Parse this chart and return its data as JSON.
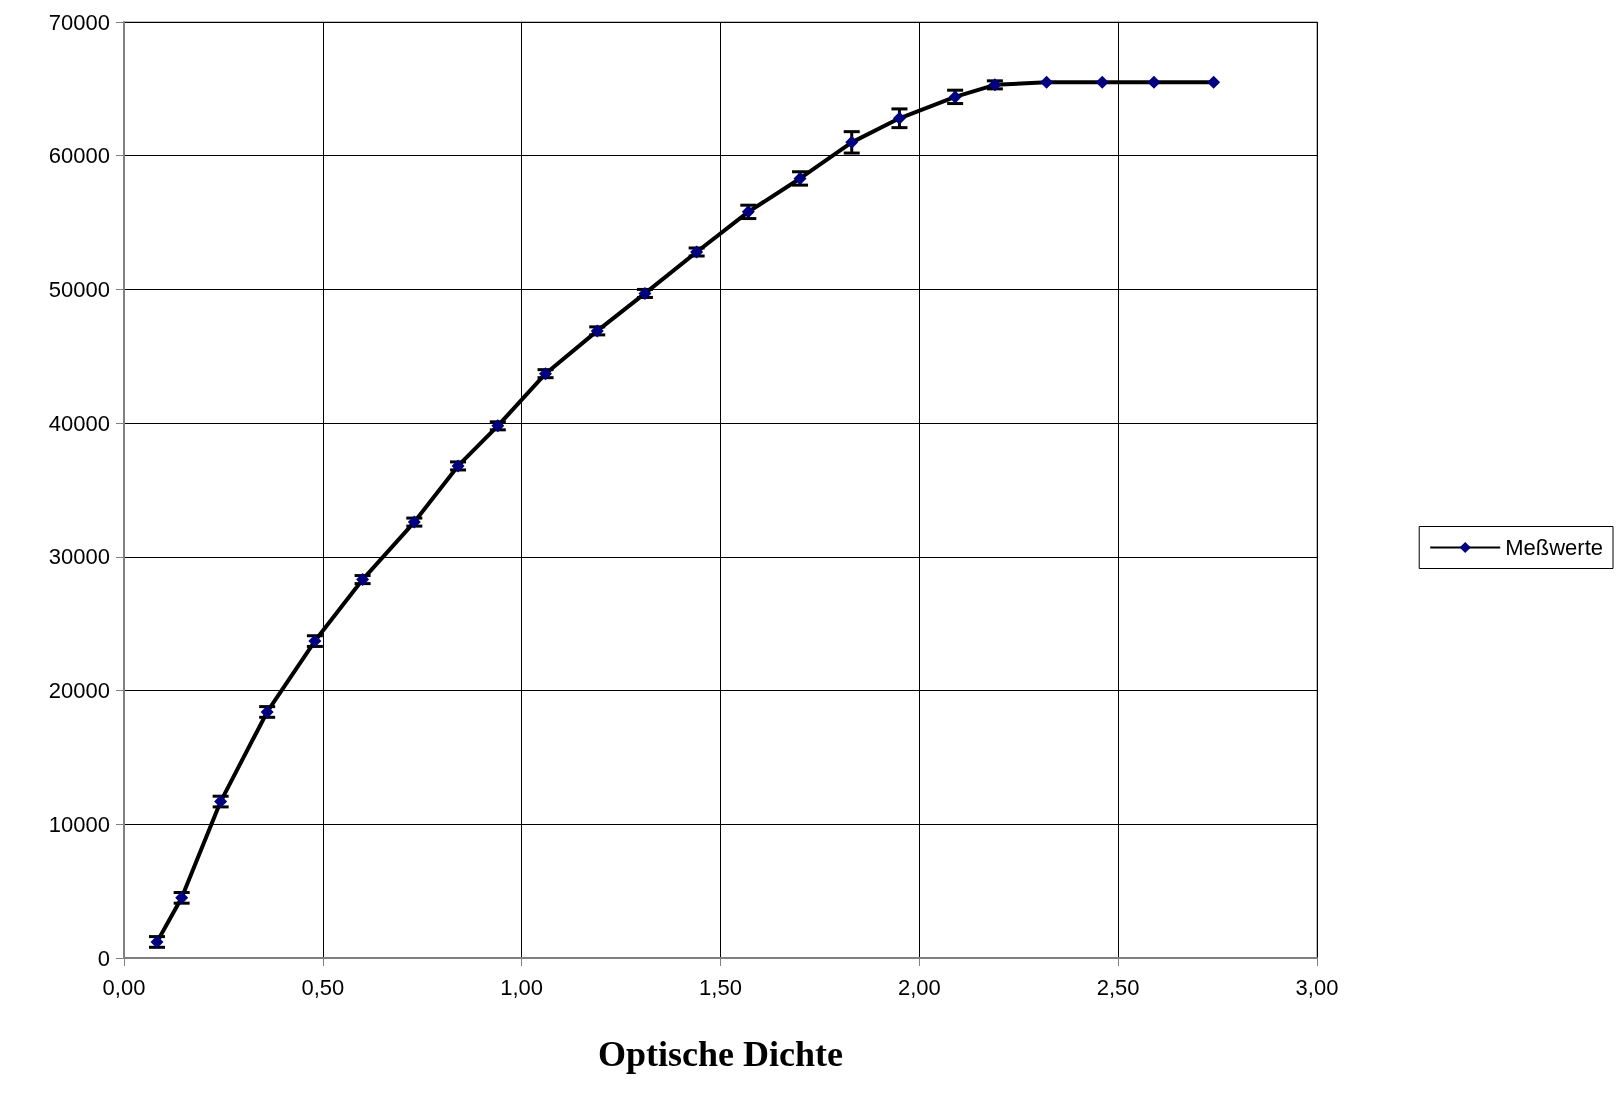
{
  "chart_data": {
    "type": "line",
    "xlabel": "Optische Dichte",
    "x": [
      0.083,
      0.145,
      0.243,
      0.36,
      0.48,
      0.6,
      0.73,
      0.84,
      0.94,
      1.06,
      1.19,
      1.31,
      1.44,
      1.57,
      1.7,
      1.83,
      1.95,
      2.09,
      2.19,
      2.32,
      2.46,
      2.59,
      2.74
    ],
    "series": [
      {
        "name": "Meßwerte",
        "color": "#000080",
        "values": [
          1200,
          4500,
          11700,
          18400,
          23700,
          28300,
          32600,
          36800,
          39800,
          43700,
          46900,
          49700,
          52800,
          55800,
          58300,
          61000,
          62800,
          64400,
          65300,
          65500,
          65500,
          65500,
          65500
        ],
        "errors": [
          400,
          400,
          400,
          400,
          400,
          300,
          300,
          300,
          300,
          300,
          300,
          300,
          300,
          500,
          500,
          800,
          700,
          500,
          300,
          null,
          null,
          null,
          null
        ]
      }
    ],
    "xlim": [
      0,
      3
    ],
    "xticks": [
      {
        "value": 0,
        "label": "0,00"
      },
      {
        "value": 0.5,
        "label": "0,50"
      },
      {
        "value": 1,
        "label": "1,00"
      },
      {
        "value": 1.5,
        "label": "1,50"
      },
      {
        "value": 2,
        "label": "2,00"
      },
      {
        "value": 2.5,
        "label": "2,50"
      },
      {
        "value": 3,
        "label": "3,00"
      }
    ],
    "ylim": [
      0,
      70000
    ],
    "yticks": [
      0,
      10000,
      20000,
      30000,
      40000,
      50000,
      60000,
      70000
    ],
    "grid": true,
    "legend": "right",
    "marker": "diamond",
    "line_style": "solid"
  }
}
